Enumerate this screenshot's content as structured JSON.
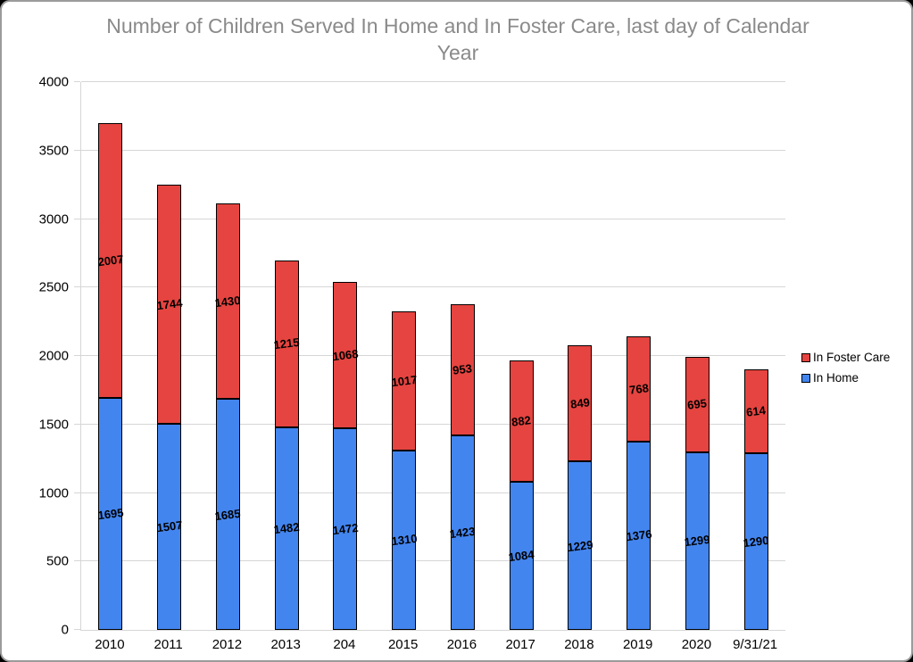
{
  "chart_data": {
    "type": "bar",
    "stacked": true,
    "title": "Number of Children Served In Home and In Foster Care, last day of Calendar Year",
    "categories": [
      "2010",
      "2011",
      "2012",
      "2013",
      "204",
      "2015",
      "2016",
      "2017",
      "2018",
      "2019",
      "2020",
      "9/31/21"
    ],
    "series": [
      {
        "name": "In Home",
        "color": "#4385EF",
        "values": [
          1695,
          1507,
          1685,
          1482,
          1472,
          1310,
          1423,
          1084,
          1229,
          1376,
          1299,
          1290
        ]
      },
      {
        "name": "In Foster Care",
        "color": "#E54440",
        "values": [
          2007,
          1744,
          1430,
          1215,
          1068,
          1017,
          953,
          882,
          849,
          768,
          695,
          614
        ]
      }
    ],
    "xlabel": "",
    "ylabel": "",
    "ylim": [
      0,
      4000
    ],
    "yticks": [
      0,
      500,
      1000,
      1500,
      2000,
      2500,
      3000,
      3500,
      4000
    ],
    "grid": true,
    "legend_position": "right",
    "legend_order": [
      "In Foster Care",
      "In Home"
    ],
    "data_labels": true
  },
  "colors": {
    "in_home": "#4385EF",
    "in_foster_care": "#E54440",
    "title_text": "#8a8a8a",
    "gridline": "#d6d6d6",
    "bar_border": "#000000"
  }
}
